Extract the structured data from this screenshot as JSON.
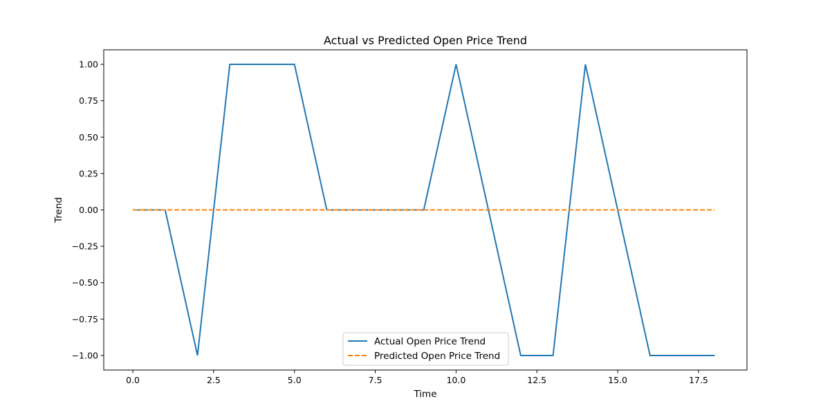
{
  "chart_data": {
    "type": "line",
    "title": "Actual vs Predicted Open Price Trend",
    "xlabel": "Time",
    "ylabel": "Trend",
    "xlim": [
      -0.9,
      19.0
    ],
    "ylim": [
      -1.1,
      1.1
    ],
    "x_ticks": [
      0.0,
      2.5,
      5.0,
      7.5,
      10.0,
      12.5,
      15.0,
      17.5
    ],
    "x_tick_labels": [
      "0.0",
      "2.5",
      "5.0",
      "7.5",
      "10.0",
      "12.5",
      "15.0",
      "17.5"
    ],
    "y_ticks": [
      1.0,
      0.75,
      0.5,
      0.25,
      0.0,
      -0.25,
      -0.5,
      -0.75,
      -1.0
    ],
    "y_tick_labels": [
      "1.00",
      "0.75",
      "0.50",
      "0.25",
      "0.00",
      "−0.25",
      "−0.50",
      "−0.75",
      "−1.00"
    ],
    "grid": false,
    "legend_position": "bottom-center",
    "series": [
      {
        "name": "Actual Open Price Trend",
        "style": "solid",
        "color": "#1f77b4",
        "x": [
          0,
          1,
          2,
          3,
          4,
          5,
          6,
          7,
          8,
          9,
          10,
          11,
          12,
          13,
          14,
          15,
          16,
          17,
          18
        ],
        "values": [
          0,
          0,
          -1,
          1,
          1,
          1,
          0,
          0,
          0,
          0,
          1,
          0,
          -1,
          -1,
          1,
          0,
          -1,
          -1,
          -1
        ]
      },
      {
        "name": "Predicted Open Price Trend",
        "style": "dashed",
        "color": "#ff7f0e",
        "x": [
          0,
          1,
          2,
          3,
          4,
          5,
          6,
          7,
          8,
          9,
          10,
          11,
          12,
          13,
          14,
          15,
          16,
          17,
          18
        ],
        "values": [
          0,
          0,
          0,
          0,
          0,
          0,
          0,
          0,
          0,
          0,
          0,
          0,
          0,
          0,
          0,
          0,
          0,
          0,
          0
        ]
      }
    ]
  }
}
